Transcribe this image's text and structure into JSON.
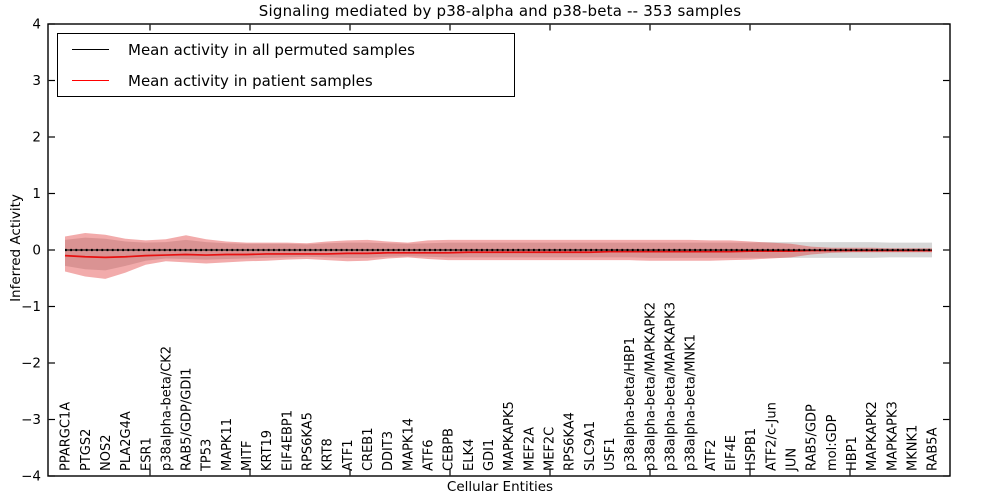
{
  "title": "Signaling mediated by p38-alpha and p38-beta -- 353 samples",
  "ylabel": "Inferred Activity",
  "xlabel": "Cellular Entities",
  "legend": [
    {
      "label": "Mean activity in all permuted samples",
      "color": "#000000"
    },
    {
      "label": "Mean activity in patient samples",
      "color": "#ff0000"
    }
  ],
  "chart_data": {
    "type": "line",
    "title": "Signaling mediated by p38-alpha and p38-beta -- 353 samples",
    "xlabel": "Cellular Entities",
    "ylabel": "Inferred Activity",
    "ylim": [
      -4,
      4
    ],
    "yticks": [
      4,
      3,
      2,
      1,
      0,
      -1,
      -2,
      -3,
      -4
    ],
    "grid": false,
    "legend_position": "upper left",
    "categories": [
      "PPARGC1A",
      "PTGS2",
      "NOS2",
      "PLA2G4A",
      "ESR1",
      "p38alpha-beta/CK2",
      "RAB5/GDP/GDI1",
      "TP53",
      "MAPK11",
      "MITF",
      "KRT19",
      "EIF4EBP1",
      "RPS6KA5",
      "KRT8",
      "ATF1",
      "CREB1",
      "DDIT3",
      "MAPK14",
      "ATF6",
      "CEBPB",
      "ELK4",
      "GDI1",
      "MAPKAPK5",
      "MEF2A",
      "MEF2C",
      "RPS6KA4",
      "SLC9A1",
      "USF1",
      "p38alpha-beta/HBP1",
      "p38alpha-beta/MAPKAPK2",
      "p38alpha-beta/MAPKAPK3",
      "p38alpha-beta/MNK1",
      "ATF2",
      "EIF4E",
      "HSPB1",
      "ATF2/c-Jun",
      "JUN",
      "RAB5/GDP",
      "mol:GDP",
      "HBP1",
      "MAPKAPK2",
      "MAPKAPK3",
      "MKNK1",
      "RAB5A"
    ],
    "series": [
      {
        "name": "Mean activity in all permuted samples",
        "color": "#000000",
        "style": "solid-with-dots",
        "values": [
          0,
          0,
          0,
          0,
          0,
          0,
          0,
          0,
          0,
          0,
          0,
          0,
          0,
          0,
          0,
          0,
          0,
          0,
          0,
          0,
          0,
          0,
          0,
          0,
          0,
          0,
          0,
          0,
          0,
          0,
          0,
          0,
          0,
          0,
          0,
          0,
          0,
          0,
          0,
          0,
          0,
          0,
          0,
          0
        ]
      },
      {
        "name": "Mean activity in patient samples",
        "color": "#e81010",
        "style": "solid",
        "values": [
          -0.1,
          -0.12,
          -0.13,
          -0.12,
          -0.1,
          -0.09,
          -0.08,
          -0.09,
          -0.08,
          -0.08,
          -0.07,
          -0.07,
          -0.07,
          -0.07,
          -0.06,
          -0.06,
          -0.05,
          -0.05,
          -0.05,
          -0.05,
          -0.04,
          -0.04,
          -0.04,
          -0.04,
          -0.04,
          -0.04,
          -0.04,
          -0.03,
          -0.03,
          -0.03,
          -0.03,
          -0.03,
          -0.03,
          -0.03,
          -0.02,
          -0.02,
          -0.02,
          -0.01,
          -0.01,
          -0.01,
          -0.01,
          -0.01,
          -0.01,
          -0.01
        ]
      }
    ],
    "bands": [
      {
        "name": "permuted-range",
        "color": "rgba(110,110,110,0.28)",
        "upper": [
          0.18,
          0.22,
          0.2,
          0.15,
          0.13,
          0.14,
          0.18,
          0.14,
          0.12,
          0.11,
          0.11,
          0.11,
          0.1,
          0.12,
          0.13,
          0.13,
          0.12,
          0.11,
          0.12,
          0.13,
          0.13,
          0.13,
          0.13,
          0.13,
          0.13,
          0.13,
          0.13,
          0.13,
          0.13,
          0.13,
          0.13,
          0.13,
          0.13,
          0.13,
          0.13,
          0.14,
          0.14,
          0.14,
          0.14,
          0.14,
          0.14,
          0.13,
          0.13,
          0.13
        ],
        "lower": [
          -0.28,
          -0.34,
          -0.36,
          -0.28,
          -0.19,
          -0.15,
          -0.16,
          -0.17,
          -0.16,
          -0.15,
          -0.14,
          -0.13,
          -0.12,
          -0.13,
          -0.14,
          -0.14,
          -0.12,
          -0.11,
          -0.12,
          -0.13,
          -0.13,
          -0.13,
          -0.13,
          -0.13,
          -0.13,
          -0.13,
          -0.13,
          -0.13,
          -0.13,
          -0.14,
          -0.14,
          -0.14,
          -0.14,
          -0.14,
          -0.14,
          -0.14,
          -0.14,
          -0.14,
          -0.14,
          -0.14,
          -0.14,
          -0.13,
          -0.13,
          -0.13
        ]
      },
      {
        "name": "patient-range",
        "color": "rgba(222,45,45,0.40)",
        "upper": [
          0.24,
          0.3,
          0.27,
          0.2,
          0.17,
          0.19,
          0.26,
          0.19,
          0.15,
          0.13,
          0.13,
          0.13,
          0.12,
          0.15,
          0.17,
          0.18,
          0.15,
          0.13,
          0.17,
          0.18,
          0.18,
          0.18,
          0.18,
          0.18,
          0.18,
          0.18,
          0.18,
          0.18,
          0.18,
          0.18,
          0.18,
          0.18,
          0.17,
          0.17,
          0.15,
          0.13,
          0.11,
          0.06,
          0.04,
          0.04,
          0.04,
          0.03,
          0.03,
          0.03
        ],
        "lower": [
          -0.38,
          -0.47,
          -0.51,
          -0.4,
          -0.26,
          -0.2,
          -0.22,
          -0.24,
          -0.22,
          -0.2,
          -0.19,
          -0.17,
          -0.16,
          -0.18,
          -0.2,
          -0.19,
          -0.15,
          -0.13,
          -0.16,
          -0.18,
          -0.18,
          -0.18,
          -0.18,
          -0.18,
          -0.18,
          -0.18,
          -0.18,
          -0.18,
          -0.18,
          -0.19,
          -0.19,
          -0.19,
          -0.19,
          -0.18,
          -0.17,
          -0.15,
          -0.13,
          -0.08,
          -0.05,
          -0.04,
          -0.04,
          -0.04,
          -0.04,
          -0.04
        ]
      }
    ]
  }
}
